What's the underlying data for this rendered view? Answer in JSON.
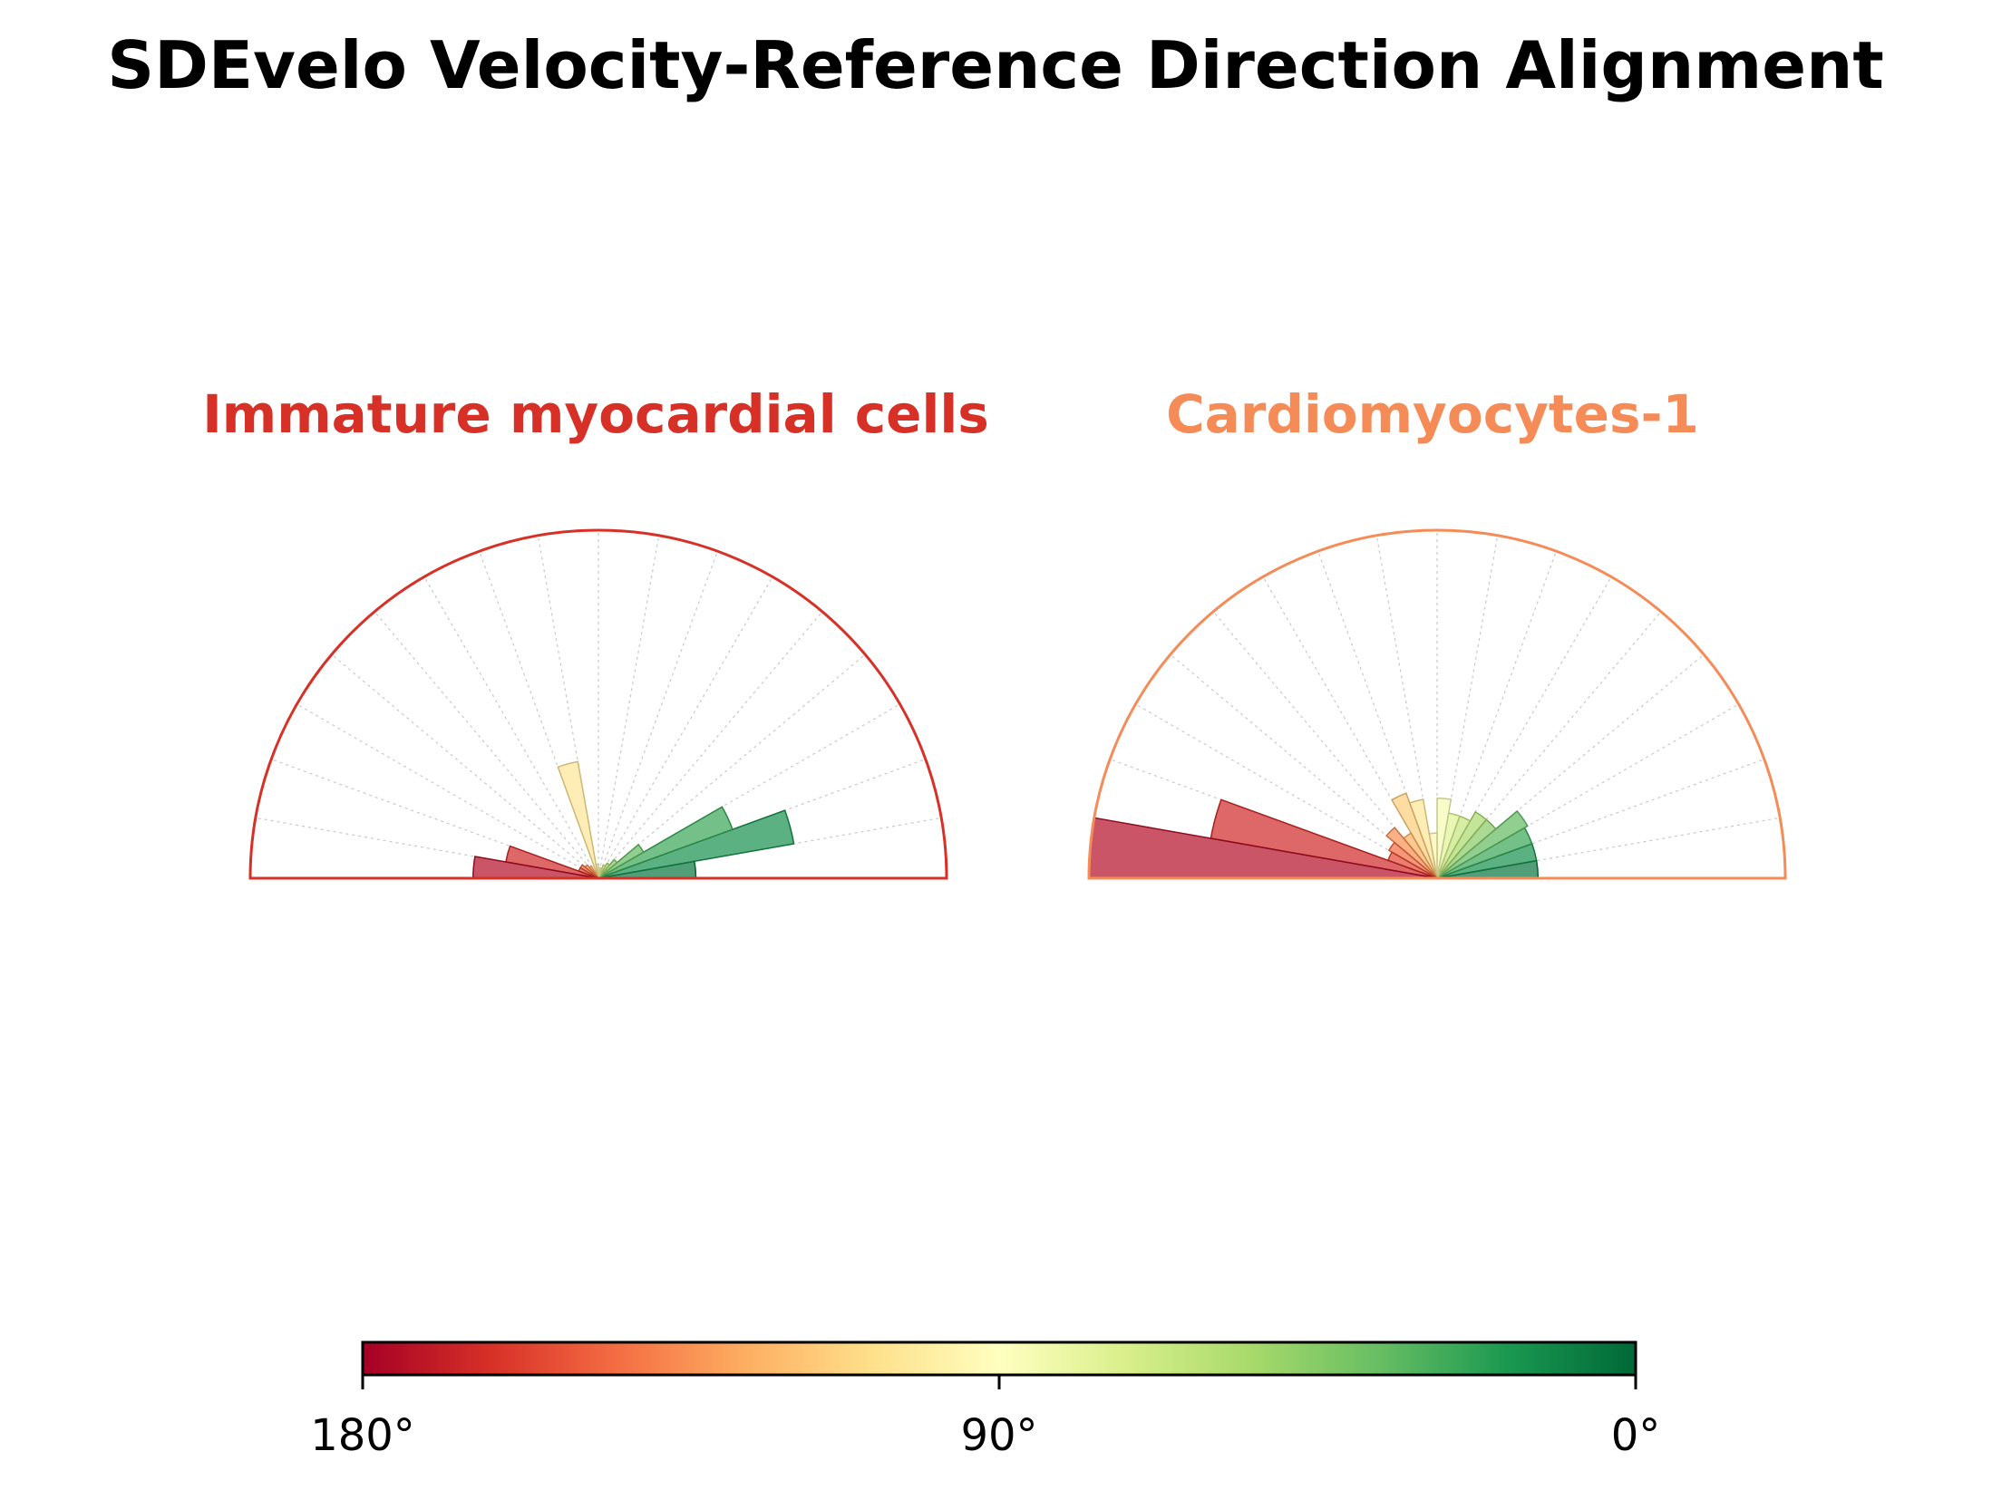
{
  "figure": {
    "title": "SDEvelo Velocity-Reference Direction Alignment"
  },
  "colors": {
    "cmap": [
      "#a50026",
      "#d73027",
      "#f46d43",
      "#fdae61",
      "#fee08b",
      "#ffffbf",
      "#d9ef8b",
      "#a6d96a",
      "#66bd63",
      "#1a9850",
      "#006837"
    ],
    "spoke": "#c8c8c8"
  },
  "chart_data": [
    {
      "type": "polar-bar",
      "title": "Immature myocardial cells",
      "title_color": "#d73027",
      "theta_range_deg": [
        0,
        180
      ],
      "bin_width_deg": 10,
      "radial_max": 1.0,
      "bins_deg": [
        5,
        15,
        25,
        35,
        45,
        55,
        65,
        75,
        85,
        95,
        105,
        115,
        125,
        135,
        145,
        155,
        165,
        175
      ],
      "radii": [
        0.28,
        0.57,
        0.41,
        0.15,
        0.07,
        0.05,
        0.04,
        0.03,
        0.03,
        0.04,
        0.34,
        0.02,
        0.04,
        0.05,
        0.06,
        0.06,
        0.27,
        0.36
      ]
    },
    {
      "type": "polar-bar",
      "title": "Cardiomyocytes-1",
      "title_color": "#f58b57",
      "theta_range_deg": [
        0,
        180
      ],
      "bin_width_deg": 10,
      "radial_max": 1.0,
      "bins_deg": [
        5,
        15,
        25,
        35,
        45,
        55,
        65,
        75,
        85,
        95,
        105,
        115,
        125,
        135,
        145,
        155,
        165,
        175
      ],
      "radii": [
        0.29,
        0.29,
        0.29,
        0.3,
        0.22,
        0.22,
        0.19,
        0.19,
        0.23,
        0.13,
        0.23,
        0.26,
        0.15,
        0.19,
        0.16,
        0.15,
        0.66,
        1.0
      ]
    }
  ],
  "colorbar": {
    "range_deg": [
      180,
      0
    ],
    "tick_values": [
      180,
      90,
      0
    ],
    "tick_labels": [
      "180°",
      "90°",
      "0°"
    ]
  }
}
